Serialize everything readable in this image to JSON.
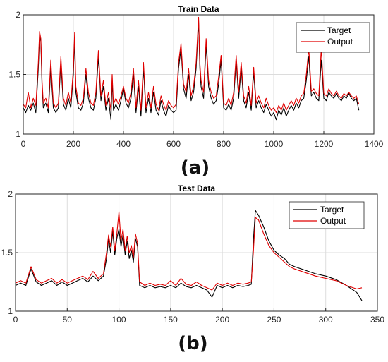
{
  "chart_data": [
    {
      "type": "line",
      "title": "Train Data",
      "panel_label": "(a)",
      "xlim": [
        0,
        1400
      ],
      "ylim": [
        1,
        2
      ],
      "xticks": [
        0,
        200,
        400,
        600,
        800,
        1000,
        1200,
        1400
      ],
      "yticks": [
        1,
        1.5,
        2
      ],
      "yticklabels": [
        "1",
        "1.5",
        "2"
      ],
      "grid": true,
      "legend_position": "top-right",
      "series": [
        {
          "name": "Target",
          "color": "#000000",
          "x": [
            0,
            10,
            20,
            30,
            40,
            50,
            60,
            65,
            70,
            75,
            80,
            90,
            100,
            110,
            120,
            130,
            140,
            150,
            160,
            170,
            180,
            190,
            200,
            205,
            210,
            220,
            230,
            240,
            250,
            260,
            270,
            280,
            290,
            300,
            310,
            320,
            330,
            340,
            350,
            355,
            360,
            370,
            380,
            390,
            400,
            410,
            420,
            430,
            440,
            450,
            460,
            470,
            480,
            490,
            500,
            510,
            520,
            530,
            540,
            550,
            560,
            570,
            580,
            590,
            600,
            610,
            620,
            630,
            640,
            650,
            660,
            670,
            680,
            690,
            700,
            705,
            710,
            720,
            730,
            740,
            750,
            760,
            770,
            780,
            790,
            800,
            810,
            820,
            830,
            840,
            850,
            860,
            870,
            880,
            890,
            900,
            910,
            920,
            930,
            940,
            950,
            960,
            970,
            980,
            990,
            1000,
            1010,
            1020,
            1030,
            1040,
            1050,
            1060,
            1070,
            1080,
            1090,
            1100,
            1110,
            1120,
            1130,
            1140,
            1150,
            1160,
            1170,
            1180,
            1190,
            1200,
            1210,
            1220,
            1230,
            1240,
            1250,
            1260,
            1270,
            1280,
            1290,
            1300,
            1310,
            1320,
            1330,
            1340
          ],
          "y": [
            1.22,
            1.18,
            1.24,
            1.2,
            1.26,
            1.18,
            1.55,
            1.82,
            1.78,
            1.4,
            1.22,
            1.26,
            1.18,
            1.55,
            1.22,
            1.18,
            1.22,
            1.6,
            1.25,
            1.2,
            1.3,
            1.22,
            1.5,
            1.8,
            1.35,
            1.22,
            1.2,
            1.26,
            1.5,
            1.3,
            1.22,
            1.2,
            1.3,
            1.65,
            1.28,
            1.4,
            1.2,
            1.3,
            1.12,
            1.45,
            1.2,
            1.25,
            1.2,
            1.28,
            1.38,
            1.26,
            1.22,
            1.3,
            1.5,
            1.18,
            1.4,
            1.15,
            1.55,
            1.18,
            1.3,
            1.18,
            1.35,
            1.2,
            1.16,
            1.28,
            1.2,
            1.15,
            1.24,
            1.2,
            1.18,
            1.2,
            1.55,
            1.72,
            1.38,
            1.3,
            1.5,
            1.28,
            1.35,
            1.55,
            1.95,
            1.55,
            1.4,
            1.3,
            1.75,
            1.4,
            1.3,
            1.25,
            1.28,
            1.42,
            1.62,
            1.22,
            1.2,
            1.25,
            1.2,
            1.3,
            1.62,
            1.3,
            1.55,
            1.28,
            1.22,
            1.35,
            1.2,
            1.52,
            1.22,
            1.28,
            1.22,
            1.18,
            1.25,
            1.2,
            1.15,
            1.18,
            1.12,
            1.2,
            1.16,
            1.22,
            1.15,
            1.2,
            1.24,
            1.2,
            1.26,
            1.22,
            1.28,
            1.3,
            1.45,
            1.65,
            1.32,
            1.35,
            1.3,
            1.28,
            1.62,
            1.3,
            1.28,
            1.35,
            1.32,
            1.3,
            1.34,
            1.3,
            1.28,
            1.32,
            1.3,
            1.34,
            1.3,
            1.28,
            1.3,
            1.2
          ]
        },
        {
          "name": "Output",
          "color": "#e00000",
          "x": [
            0,
            10,
            20,
            30,
            40,
            50,
            60,
            65,
            70,
            75,
            80,
            90,
            100,
            110,
            120,
            130,
            140,
            150,
            160,
            170,
            180,
            190,
            200,
            205,
            210,
            220,
            230,
            240,
            250,
            260,
            270,
            280,
            290,
            300,
            310,
            320,
            330,
            340,
            350,
            355,
            360,
            370,
            380,
            390,
            400,
            410,
            420,
            430,
            440,
            450,
            460,
            470,
            480,
            490,
            500,
            510,
            520,
            530,
            540,
            550,
            560,
            570,
            580,
            590,
            600,
            610,
            620,
            630,
            640,
            650,
            660,
            670,
            680,
            690,
            700,
            705,
            710,
            720,
            730,
            740,
            750,
            760,
            770,
            780,
            790,
            800,
            810,
            820,
            830,
            840,
            850,
            860,
            870,
            880,
            890,
            900,
            910,
            920,
            930,
            940,
            950,
            960,
            970,
            980,
            990,
            1000,
            1010,
            1020,
            1030,
            1040,
            1050,
            1060,
            1070,
            1080,
            1090,
            1100,
            1110,
            1120,
            1130,
            1140,
            1150,
            1160,
            1170,
            1180,
            1190,
            1200,
            1210,
            1220,
            1230,
            1240,
            1250,
            1260,
            1270,
            1280,
            1290,
            1300,
            1310,
            1320,
            1330,
            1340
          ],
          "y": [
            1.25,
            1.22,
            1.35,
            1.22,
            1.3,
            1.24,
            1.6,
            1.86,
            1.8,
            1.45,
            1.26,
            1.3,
            1.22,
            1.62,
            1.26,
            1.22,
            1.26,
            1.65,
            1.3,
            1.24,
            1.35,
            1.26,
            1.55,
            1.85,
            1.4,
            1.26,
            1.24,
            1.3,
            1.55,
            1.35,
            1.26,
            1.24,
            1.35,
            1.7,
            1.32,
            1.45,
            1.24,
            1.35,
            1.2,
            1.5,
            1.25,
            1.3,
            1.25,
            1.32,
            1.4,
            1.3,
            1.26,
            1.35,
            1.55,
            1.22,
            1.45,
            1.2,
            1.6,
            1.22,
            1.35,
            1.22,
            1.4,
            1.25,
            1.2,
            1.32,
            1.25,
            1.2,
            1.28,
            1.24,
            1.22,
            1.25,
            1.6,
            1.76,
            1.42,
            1.35,
            1.55,
            1.32,
            1.4,
            1.6,
            1.98,
            1.6,
            1.45,
            1.35,
            1.8,
            1.45,
            1.35,
            1.3,
            1.32,
            1.48,
            1.66,
            1.26,
            1.24,
            1.3,
            1.24,
            1.35,
            1.66,
            1.35,
            1.6,
            1.32,
            1.26,
            1.4,
            1.24,
            1.56,
            1.26,
            1.32,
            1.26,
            1.22,
            1.3,
            1.24,
            1.2,
            1.22,
            1.18,
            1.24,
            1.2,
            1.26,
            1.2,
            1.24,
            1.28,
            1.24,
            1.3,
            1.26,
            1.32,
            1.34,
            1.5,
            1.72,
            1.36,
            1.38,
            1.34,
            1.32,
            1.72,
            1.34,
            1.32,
            1.38,
            1.34,
            1.32,
            1.36,
            1.32,
            1.3,
            1.34,
            1.32,
            1.35,
            1.32,
            1.3,
            1.32,
            1.25
          ]
        }
      ]
    },
    {
      "type": "line",
      "title": "Test Data",
      "panel_label": "(b)",
      "xlim": [
        0,
        350
      ],
      "ylim": [
        1,
        2
      ],
      "xticks": [
        0,
        50,
        100,
        150,
        200,
        250,
        300,
        350
      ],
      "yticks": [
        1,
        1.5,
        2
      ],
      "yticklabels": [
        "1",
        "1.5",
        "2"
      ],
      "grid": true,
      "legend_position": "top-right",
      "series": [
        {
          "name": "Target",
          "color": "#000000",
          "x": [
            0,
            5,
            10,
            15,
            20,
            25,
            30,
            35,
            40,
            45,
            50,
            55,
            60,
            65,
            70,
            75,
            80,
            85,
            88,
            90,
            92,
            94,
            96,
            98,
            100,
            102,
            104,
            106,
            108,
            110,
            112,
            114,
            116,
            118,
            120,
            125,
            130,
            135,
            140,
            145,
            150,
            155,
            160,
            165,
            170,
            175,
            180,
            185,
            190,
            195,
            200,
            205,
            210,
            215,
            220,
            225,
            228,
            230,
            232,
            235,
            240,
            245,
            250,
            255,
            260,
            265,
            270,
            280,
            290,
            300,
            310,
            320,
            330,
            335
          ],
          "y": [
            1.22,
            1.24,
            1.22,
            1.36,
            1.25,
            1.22,
            1.24,
            1.26,
            1.22,
            1.25,
            1.22,
            1.24,
            1.26,
            1.28,
            1.25,
            1.3,
            1.26,
            1.3,
            1.45,
            1.62,
            1.5,
            1.68,
            1.48,
            1.62,
            1.7,
            1.55,
            1.65,
            1.48,
            1.6,
            1.45,
            1.52,
            1.42,
            1.62,
            1.55,
            1.22,
            1.2,
            1.22,
            1.2,
            1.21,
            1.2,
            1.22,
            1.2,
            1.24,
            1.21,
            1.2,
            1.22,
            1.2,
            1.18,
            1.12,
            1.22,
            1.2,
            1.22,
            1.2,
            1.22,
            1.21,
            1.22,
            1.23,
            1.6,
            1.86,
            1.82,
            1.72,
            1.6,
            1.52,
            1.48,
            1.45,
            1.4,
            1.38,
            1.35,
            1.32,
            1.3,
            1.27,
            1.22,
            1.16,
            1.09
          ]
        },
        {
          "name": "Output",
          "color": "#e00000",
          "x": [
            0,
            5,
            10,
            15,
            20,
            25,
            30,
            35,
            40,
            45,
            50,
            55,
            60,
            65,
            70,
            75,
            80,
            85,
            88,
            90,
            92,
            94,
            96,
            98,
            100,
            102,
            104,
            106,
            108,
            110,
            112,
            114,
            116,
            118,
            120,
            125,
            130,
            135,
            140,
            145,
            150,
            155,
            160,
            165,
            170,
            175,
            180,
            185,
            190,
            195,
            200,
            205,
            210,
            215,
            220,
            225,
            228,
            230,
            232,
            235,
            240,
            245,
            250,
            255,
            260,
            265,
            270,
            280,
            290,
            300,
            310,
            320,
            330,
            335
          ],
          "y": [
            1.24,
            1.26,
            1.24,
            1.38,
            1.27,
            1.24,
            1.26,
            1.28,
            1.24,
            1.27,
            1.24,
            1.26,
            1.28,
            1.3,
            1.27,
            1.34,
            1.28,
            1.32,
            1.5,
            1.65,
            1.55,
            1.72,
            1.52,
            1.66,
            1.85,
            1.6,
            1.7,
            1.52,
            1.64,
            1.5,
            1.56,
            1.46,
            1.66,
            1.58,
            1.25,
            1.22,
            1.24,
            1.22,
            1.23,
            1.22,
            1.26,
            1.22,
            1.28,
            1.23,
            1.22,
            1.25,
            1.22,
            1.2,
            1.18,
            1.24,
            1.22,
            1.24,
            1.22,
            1.24,
            1.23,
            1.24,
            1.25,
            1.5,
            1.8,
            1.78,
            1.66,
            1.56,
            1.5,
            1.46,
            1.42,
            1.38,
            1.36,
            1.33,
            1.3,
            1.28,
            1.26,
            1.22,
            1.19,
            1.2
          ]
        }
      ]
    }
  ]
}
